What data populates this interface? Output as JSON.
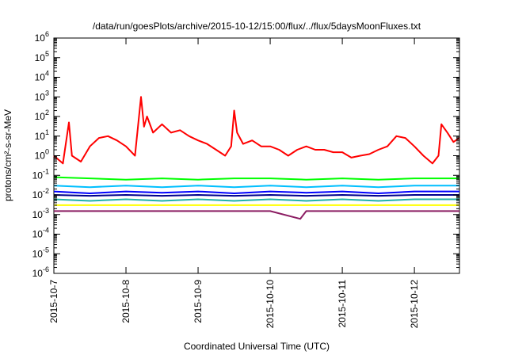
{
  "chart_data": {
    "type": "line",
    "title": "/data/run/goesPlots/archive/2015-10-12/15:00/flux/../flux/5daysMoonFluxes.txt",
    "xlabel": "Coordinated Universal Time (UTC)",
    "ylabel": "protons/cm²-s-sr-MeV",
    "yscale": "log",
    "ylim_exponent": [
      -6,
      6
    ],
    "y_tick_base": "10",
    "y_tick_exponents": [
      -6,
      -5,
      -4,
      -3,
      -2,
      -1,
      0,
      1,
      2,
      3,
      4,
      5,
      6
    ],
    "xlim": [
      "2015-10-07",
      "2015-10-12T15:00"
    ],
    "x_tick_labels": [
      "2015-10-7",
      "2015-10-8",
      "2015-10-9",
      "2015-10-10",
      "2015-10-11",
      "2015-10-12"
    ],
    "x_tick_dates": [
      "2015-10-07",
      "2015-10-08",
      "2015-10-09",
      "2015-10-10",
      "2015-10-11",
      "2015-10-12"
    ],
    "legend": "none",
    "grid": false,
    "series": [
      {
        "color": "#ff0000",
        "x": [
          "2015-10-07T00:00",
          "2015-10-07T03:00",
          "2015-10-07T05:00",
          "2015-10-07T06:00",
          "2015-10-07T09:00",
          "2015-10-07T12:00",
          "2015-10-07T15:00",
          "2015-10-07T18:00",
          "2015-10-07T21:00",
          "2015-10-08T00:00",
          "2015-10-08T03:00",
          "2015-10-08T05:00",
          "2015-10-08T06:00",
          "2015-10-08T07:00",
          "2015-10-08T09:00",
          "2015-10-08T12:00",
          "2015-10-08T15:00",
          "2015-10-08T18:00",
          "2015-10-08T21:00",
          "2015-10-09T00:00",
          "2015-10-09T03:00",
          "2015-10-09T06:00",
          "2015-10-09T09:00",
          "2015-10-09T11:00",
          "2015-10-09T12:00",
          "2015-10-09T13:00",
          "2015-10-09T15:00",
          "2015-10-09T18:00",
          "2015-10-09T21:00",
          "2015-10-10T00:00",
          "2015-10-10T03:00",
          "2015-10-10T06:00",
          "2015-10-10T09:00",
          "2015-10-10T12:00",
          "2015-10-10T15:00",
          "2015-10-10T18:00",
          "2015-10-10T21:00",
          "2015-10-11T00:00",
          "2015-10-11T03:00",
          "2015-10-11T06:00",
          "2015-10-11T09:00",
          "2015-10-11T12:00",
          "2015-10-11T15:00",
          "2015-10-11T18:00",
          "2015-10-11T21:00",
          "2015-10-12T00:00",
          "2015-10-12T03:00",
          "2015-10-12T06:00",
          "2015-10-12T08:00",
          "2015-10-12T09:00",
          "2015-10-12T11:00",
          "2015-10-12T13:00",
          "2015-10-12T15:00"
        ],
        "y": [
          1.0,
          0.4,
          50,
          1.0,
          0.5,
          3,
          8,
          10,
          6,
          3,
          1.0,
          1000,
          30,
          100,
          15,
          40,
          15,
          20,
          10,
          6,
          4,
          2,
          1.0,
          3,
          200,
          15,
          4,
          6,
          3,
          3,
          2,
          1.0,
          2,
          3,
          2,
          2,
          1.5,
          1.5,
          0.8,
          1.0,
          1.2,
          2,
          3,
          10,
          8,
          3,
          1.0,
          0.4,
          1.0,
          40,
          15,
          5,
          8
        ]
      },
      {
        "color": "#00ff00",
        "x": [
          "2015-10-07T00:00",
          "2015-10-07T12:00",
          "2015-10-08T00:00",
          "2015-10-08T12:00",
          "2015-10-09T00:00",
          "2015-10-09T12:00",
          "2015-10-10T00:00",
          "2015-10-10T12:00",
          "2015-10-11T00:00",
          "2015-10-11T12:00",
          "2015-10-12T00:00",
          "2015-10-12T15:00"
        ],
        "y": [
          0.08,
          0.07,
          0.06,
          0.07,
          0.06,
          0.07,
          0.07,
          0.06,
          0.07,
          0.06,
          0.07,
          0.07
        ]
      },
      {
        "color": "#00bfff",
        "x": [
          "2015-10-07T00:00",
          "2015-10-07T12:00",
          "2015-10-08T00:00",
          "2015-10-08T12:00",
          "2015-10-09T00:00",
          "2015-10-09T12:00",
          "2015-10-10T00:00",
          "2015-10-10T12:00",
          "2015-10-11T00:00",
          "2015-10-11T12:00",
          "2015-10-12T00:00",
          "2015-10-12T15:00"
        ],
        "y": [
          0.03,
          0.025,
          0.03,
          0.025,
          0.03,
          0.025,
          0.03,
          0.025,
          0.03,
          0.025,
          0.03,
          0.03
        ]
      },
      {
        "color": "#0000ff",
        "x": [
          "2015-10-07T00:00",
          "2015-10-07T12:00",
          "2015-10-08T00:00",
          "2015-10-08T12:00",
          "2015-10-09T00:00",
          "2015-10-09T12:00",
          "2015-10-10T00:00",
          "2015-10-10T12:00",
          "2015-10-11T00:00",
          "2015-10-11T12:00",
          "2015-10-12T00:00",
          "2015-10-12T15:00"
        ],
        "y": [
          0.015,
          0.012,
          0.015,
          0.013,
          0.015,
          0.012,
          0.015,
          0.013,
          0.015,
          0.012,
          0.015,
          0.015
        ]
      },
      {
        "color": "#00008b",
        "x": [
          "2015-10-07T00:00",
          "2015-10-07T12:00",
          "2015-10-08T00:00",
          "2015-10-08T12:00",
          "2015-10-09T00:00",
          "2015-10-09T12:00",
          "2015-10-10T00:00",
          "2015-10-10T12:00",
          "2015-10-11T00:00",
          "2015-10-11T12:00",
          "2015-10-12T00:00",
          "2015-10-12T15:00"
        ],
        "y": [
          0.01,
          0.009,
          0.01,
          0.009,
          0.01,
          0.009,
          0.01,
          0.009,
          0.01,
          0.009,
          0.01,
          0.01
        ]
      },
      {
        "color": "#20b2aa",
        "x": [
          "2015-10-07T00:00",
          "2015-10-07T12:00",
          "2015-10-08T00:00",
          "2015-10-08T12:00",
          "2015-10-09T00:00",
          "2015-10-09T12:00",
          "2015-10-10T00:00",
          "2015-10-10T12:00",
          "2015-10-11T00:00",
          "2015-10-11T12:00",
          "2015-10-12T00:00",
          "2015-10-12T15:00"
        ],
        "y": [
          0.006,
          0.005,
          0.006,
          0.005,
          0.006,
          0.005,
          0.006,
          0.005,
          0.006,
          0.005,
          0.006,
          0.006
        ]
      },
      {
        "color": "#ffff00",
        "x": [
          "2015-10-07T00:00",
          "2015-10-07T12:00",
          "2015-10-08T00:00",
          "2015-10-08T12:00",
          "2015-10-09T00:00",
          "2015-10-09T12:00",
          "2015-10-10T00:00",
          "2015-10-10T12:00",
          "2015-10-11T00:00",
          "2015-10-11T12:00",
          "2015-10-12T00:00",
          "2015-10-12T15:00"
        ],
        "y": [
          0.003,
          0.003,
          0.003,
          0.003,
          0.003,
          0.003,
          0.003,
          0.003,
          0.003,
          0.003,
          0.003,
          0.003
        ]
      },
      {
        "color": "#8b1c62",
        "x": [
          "2015-10-07T00:00",
          "2015-10-07T12:00",
          "2015-10-08T00:00",
          "2015-10-08T12:00",
          "2015-10-09T00:00",
          "2015-10-09T12:00",
          "2015-10-10T00:00",
          "2015-10-10T10:00",
          "2015-10-10T12:00",
          "2015-10-11T00:00",
          "2015-10-11T12:00",
          "2015-10-12T00:00",
          "2015-10-12T15:00"
        ],
        "y": [
          0.0015,
          0.0015,
          0.0015,
          0.0015,
          0.0015,
          0.0015,
          0.0015,
          0.0006,
          0.0015,
          0.0015,
          0.0015,
          0.0015,
          0.0015
        ]
      }
    ]
  }
}
